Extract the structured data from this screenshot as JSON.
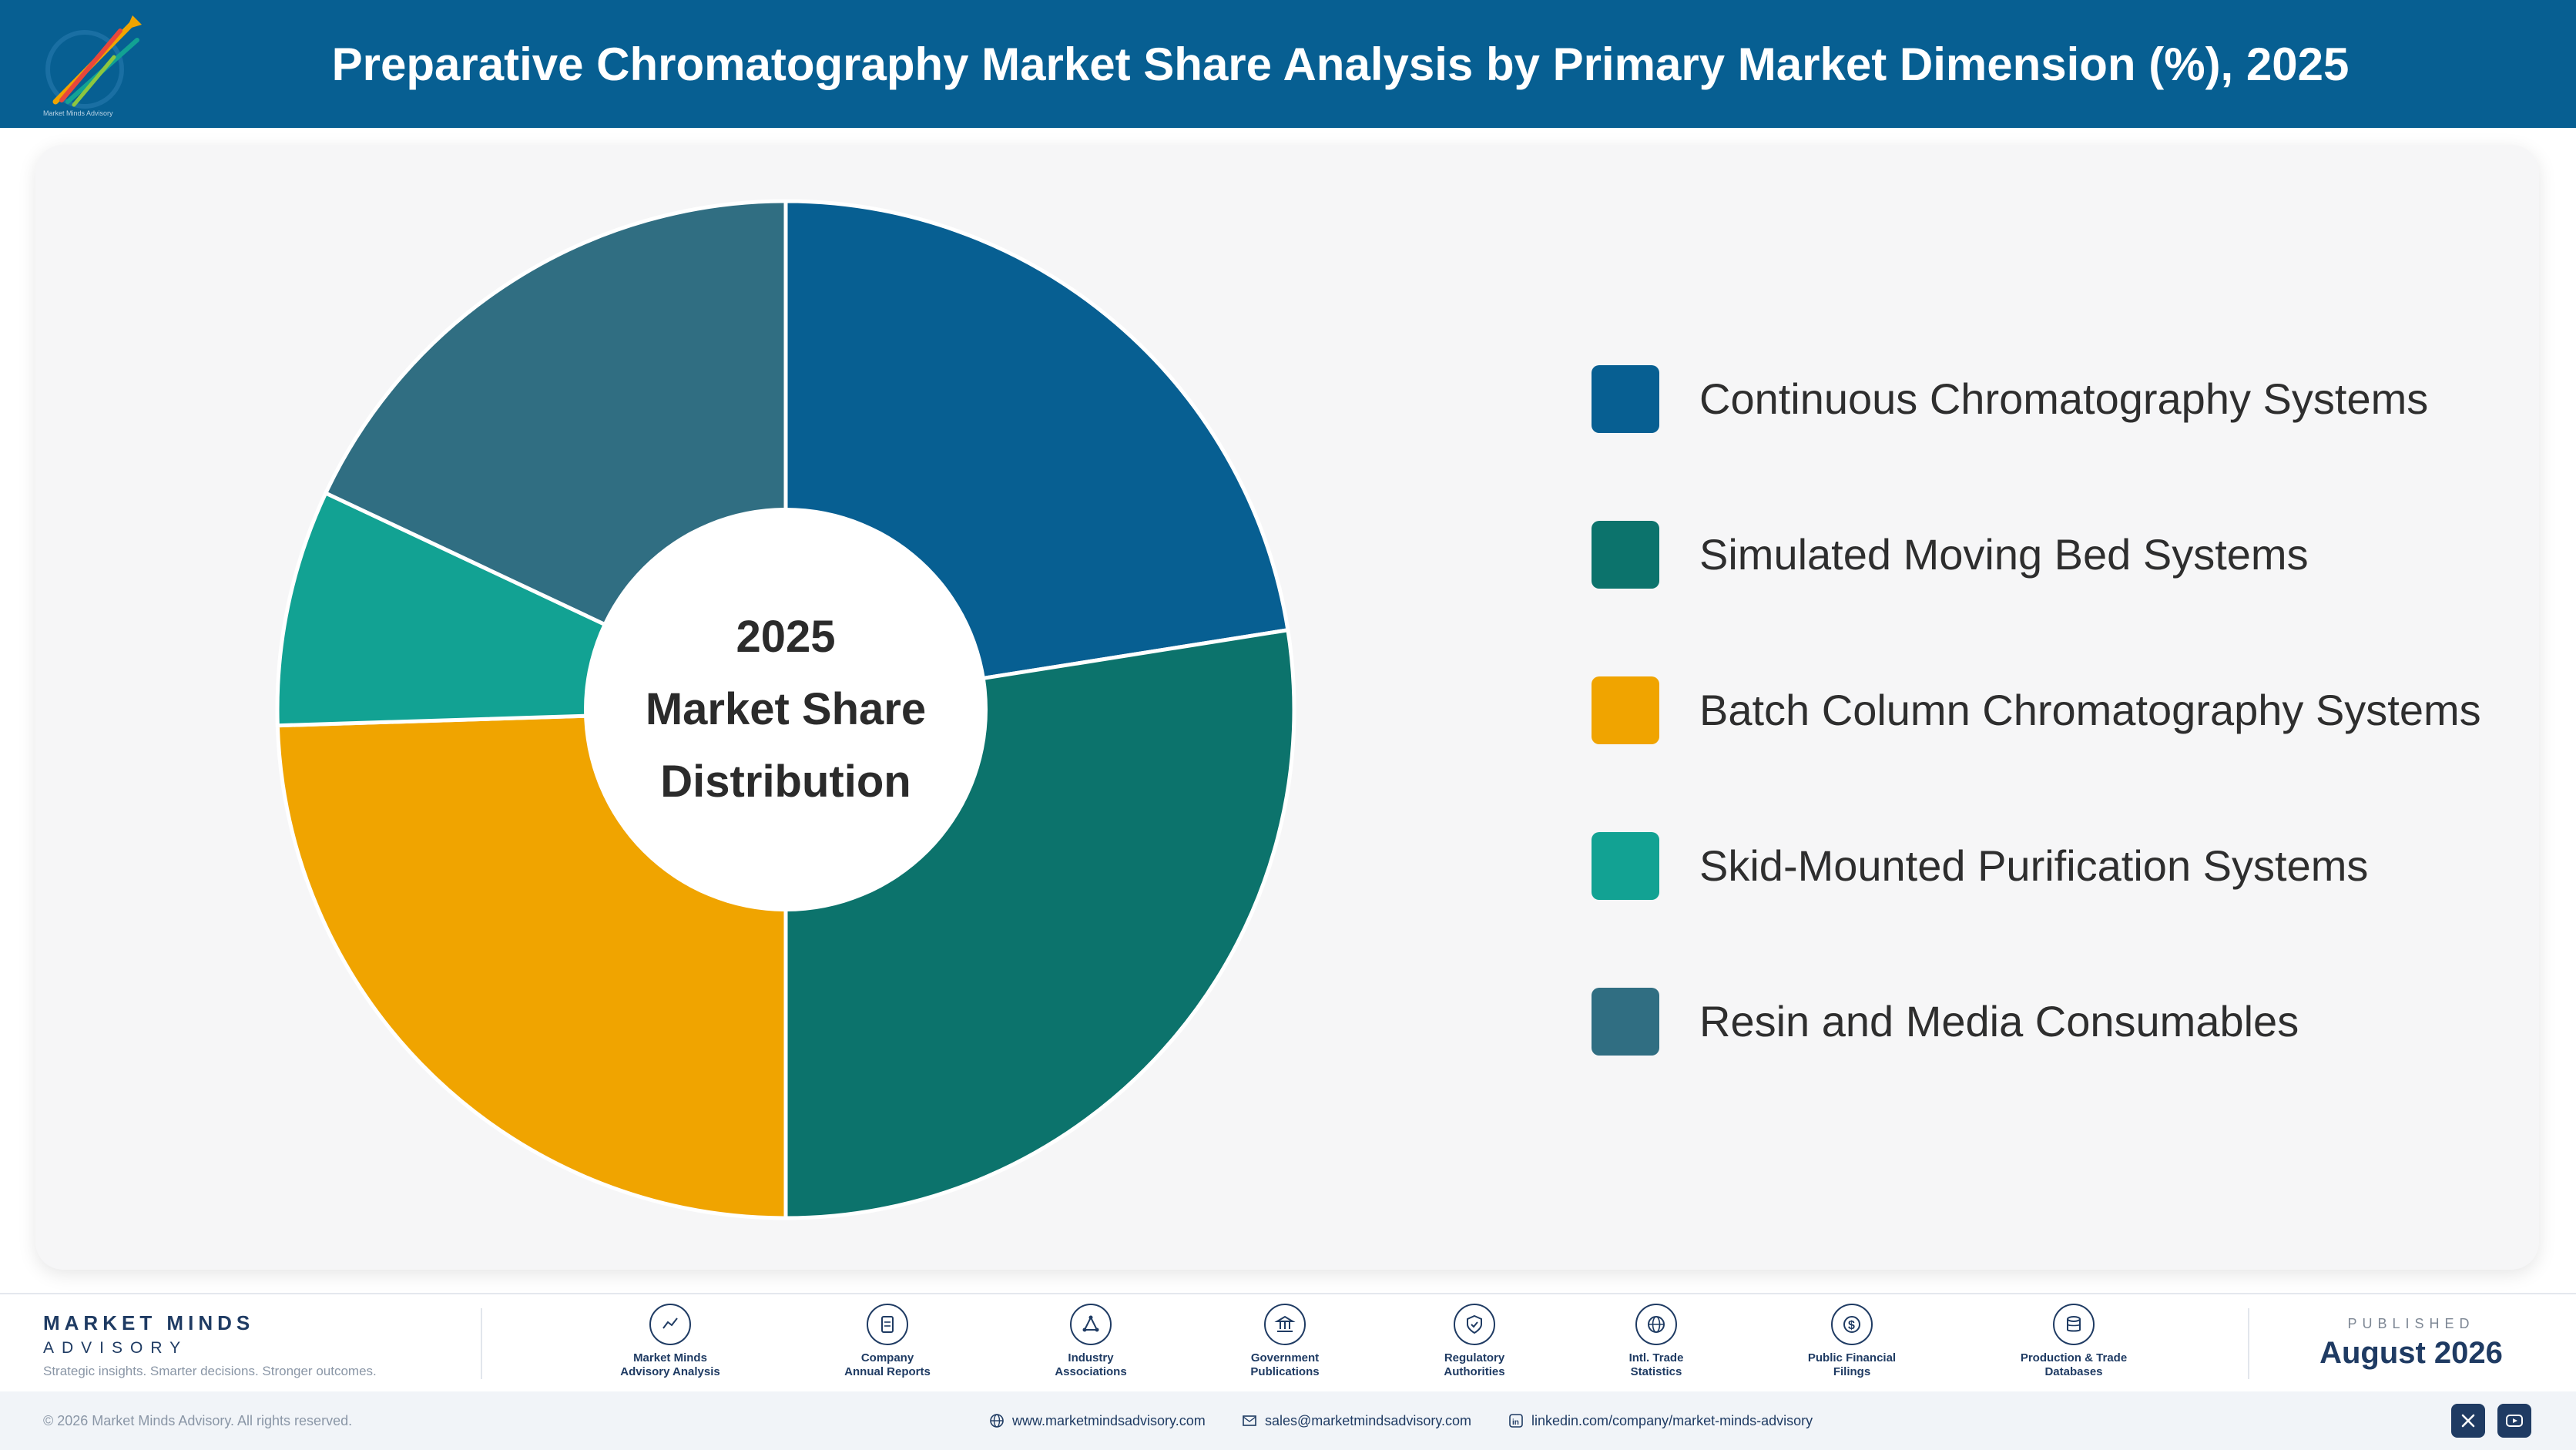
{
  "header": {
    "title": "Preparative Chromatography Market Share Analysis by Primary Market Dimension (%), 2025",
    "logo_icon": "market-minds-logo-icon",
    "logo_tagline": "Market Minds Advisory"
  },
  "chart_center": {
    "line1": "2025",
    "line2": "Market Share",
    "line3": "Distribution"
  },
  "chart_data": {
    "type": "pie",
    "donut": true,
    "title": "Preparative Chromatography Market Share Analysis by Primary Market Dimension (%), 2025",
    "legend_position": "right",
    "categories": [
      "Continuous Chromatography Systems",
      "Simulated Moving Bed Systems",
      "Batch Column Chromatography Systems",
      "Skid-Mounted Purification Systems",
      "Resin and Media Consumables"
    ],
    "values": [
      22.5,
      27.5,
      24.5,
      7.5,
      18.0
    ],
    "colors": [
      "#075f92",
      "#0c736c",
      "#f0a400",
      "#12a293",
      "#306e82"
    ]
  },
  "footer": {
    "brand_name": "MARKET MINDS",
    "brand_sub": "ADVISORY",
    "brand_tagline": "Strategic insights. Smarter decisions. Stronger outcomes.",
    "sources": [
      {
        "label": "Market Minds\nAdvisory Analysis",
        "icon": "trend-line-icon"
      },
      {
        "label": "Company\nAnnual Reports",
        "icon": "document-icon"
      },
      {
        "label": "Industry\nAssociations",
        "icon": "network-icon"
      },
      {
        "label": "Government\nPublications",
        "icon": "government-building-icon"
      },
      {
        "label": "Regulatory\nAuthorities",
        "icon": "shield-check-icon"
      },
      {
        "label": "Intl. Trade\nStatistics",
        "icon": "globe-icon"
      },
      {
        "label": "Public Financial\nFilings",
        "icon": "dollar-coin-icon"
      },
      {
        "label": "Production & Trade\nDatabases",
        "icon": "database-icon"
      }
    ],
    "published_label": "PUBLISHED",
    "published_date": "August 2026"
  },
  "bottom_bar": {
    "copyright": "© 2026 Market Minds Advisory. All rights reserved.",
    "website": "www.marketmindsadvisory.com",
    "email": "sales@marketmindsadvisory.com",
    "linkedin": "linkedin.com/company/market-minds-advisory",
    "social_icons": [
      "x-icon",
      "youtube-icon"
    ]
  },
  "colors": {
    "header_bg": "#075f92",
    "brand_navy": "#1f3b63"
  }
}
